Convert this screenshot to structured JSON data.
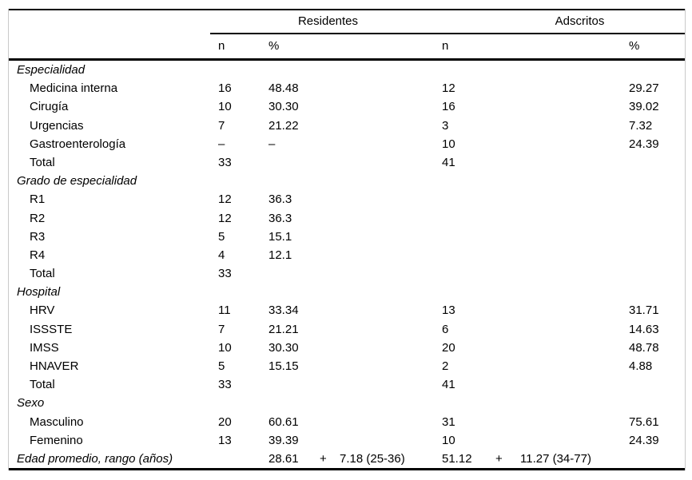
{
  "table": {
    "groups": {
      "residentes": "Residentes",
      "adscritos": "Adscritos"
    },
    "subheaders": {
      "res_n": "n",
      "res_pct": "%",
      "ads_n": "n",
      "ads_pct": "%"
    },
    "sections": [
      {
        "title": "Especialidad",
        "rows": [
          {
            "label": "Medicina interna",
            "res_n": "16",
            "res_pct": "48.48",
            "ads_n": "12",
            "ads_pct": "29.27"
          },
          {
            "label": "Cirugía",
            "res_n": "10",
            "res_pct": "30.30",
            "ads_n": "16",
            "ads_pct": "39.02"
          },
          {
            "label": "Urgencias",
            "res_n": "7",
            "res_pct": "21.22",
            "ads_n": "3",
            "ads_pct": "7.32"
          },
          {
            "label": "Gastroenterología",
            "res_n": "–",
            "res_pct": "–",
            "ads_n": "10",
            "ads_pct": "24.39"
          },
          {
            "label": "Total",
            "res_n": "33",
            "res_pct": "",
            "ads_n": "41",
            "ads_pct": ""
          }
        ]
      },
      {
        "title": "Grado de especialidad",
        "rows": [
          {
            "label": "R1",
            "res_n": "12",
            "res_pct": "36.3",
            "ads_n": "",
            "ads_pct": ""
          },
          {
            "label": "R2",
            "res_n": "12",
            "res_pct": "36.3",
            "ads_n": "",
            "ads_pct": ""
          },
          {
            "label": "R3",
            "res_n": "5",
            "res_pct": "15.1",
            "ads_n": "",
            "ads_pct": ""
          },
          {
            "label": "R4",
            "res_n": "4",
            "res_pct": "12.1",
            "ads_n": "",
            "ads_pct": ""
          },
          {
            "label": "Total",
            "res_n": "33",
            "res_pct": "",
            "ads_n": "",
            "ads_pct": ""
          }
        ]
      },
      {
        "title": "Hospital",
        "rows": [
          {
            "label": "HRV",
            "res_n": "11",
            "res_pct": "33.34",
            "ads_n": "13",
            "ads_pct": "31.71"
          },
          {
            "label": "ISSSTE",
            "res_n": "7",
            "res_pct": "21.21",
            "ads_n": "6",
            "ads_pct": "14.63"
          },
          {
            "label": "IMSS",
            "res_n": "10",
            "res_pct": "30.30",
            "ads_n": "20",
            "ads_pct": "48.78"
          },
          {
            "label": "HNAVER",
            "res_n": "5",
            "res_pct": "15.15",
            "ads_n": "2",
            "ads_pct": "4.88"
          },
          {
            "label": "Total",
            "res_n": "33",
            "res_pct": "",
            "ads_n": "41",
            "ads_pct": ""
          }
        ]
      },
      {
        "title": "Sexo",
        "rows": [
          {
            "label": "Masculino",
            "res_n": "20",
            "res_pct": "60.61",
            "ads_n": "31",
            "ads_pct": "75.61"
          },
          {
            "label": "Femenino",
            "res_n": "13",
            "res_pct": "39.39",
            "ads_n": "10",
            "ads_pct": "24.39"
          }
        ]
      }
    ],
    "age_row": {
      "label": "Edad promedio, rango (años)",
      "res_mean": "28.61",
      "res_plus": "+",
      "res_sd_range": "7.18 (25-36)",
      "ads_mean": "51.12",
      "ads_plus": "+",
      "ads_sd_range": "11.27 (34-77)"
    }
  }
}
